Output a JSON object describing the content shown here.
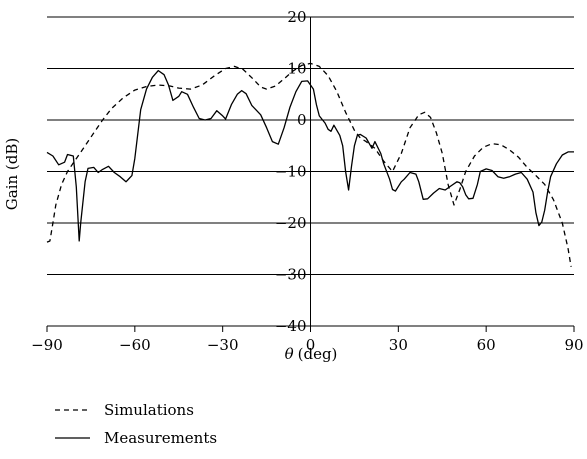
{
  "chart_data": {
    "type": "line",
    "xlabel_symbol": "θ",
    "xlabel_unit": "(deg)",
    "ylabel": "Gain (dB)",
    "xlim": [
      -90,
      90
    ],
    "ylim": [
      -40,
      20
    ],
    "x_ticks": [
      -90,
      -60,
      -30,
      0,
      30,
      60,
      90
    ],
    "x_tick_labels": [
      "−90",
      "−60",
      "−30",
      "0",
      "30",
      "60",
      "90"
    ],
    "y_ticks": [
      20,
      10,
      0,
      -10,
      -20,
      -30,
      -40
    ],
    "y_tick_labels": [
      "20",
      "10",
      "0",
      "−10",
      "−20",
      "−30",
      "−40"
    ],
    "grid": "horizontal",
    "legend_position": "bottom-left",
    "series": [
      {
        "name": "Simulations",
        "style": "dashed",
        "points": [
          [
            -90,
            -23.7
          ],
          [
            -89,
            -23.5
          ],
          [
            -88,
            -20
          ],
          [
            -87,
            -16.5
          ],
          [
            -85,
            -12.5
          ],
          [
            -83,
            -10
          ],
          [
            -80,
            -7.5
          ],
          [
            -77,
            -5
          ],
          [
            -74,
            -2.5
          ],
          [
            -71,
            0
          ],
          [
            -68,
            2.2
          ],
          [
            -64,
            4.3
          ],
          [
            -60,
            5.8
          ],
          [
            -56,
            6.5
          ],
          [
            -52,
            6.8
          ],
          [
            -48,
            6.6
          ],
          [
            -45,
            6.2
          ],
          [
            -41,
            6
          ],
          [
            -37,
            6.8
          ],
          [
            -33,
            8.5
          ],
          [
            -29,
            10
          ],
          [
            -26,
            10.4
          ],
          [
            -23,
            9.8
          ],
          [
            -20,
            8.2
          ],
          [
            -17,
            6.4
          ],
          [
            -15,
            6
          ],
          [
            -12,
            6.6
          ],
          [
            -9,
            8
          ],
          [
            -6,
            9.5
          ],
          [
            -3,
            10.6
          ],
          [
            0,
            11
          ],
          [
            3,
            10.4
          ],
          [
            6,
            8.6
          ],
          [
            9,
            5.5
          ],
          [
            12,
            1.5
          ],
          [
            15,
            -2
          ],
          [
            17,
            -3.5
          ],
          [
            19,
            -4.2
          ],
          [
            22,
            -5.5
          ],
          [
            25,
            -8
          ],
          [
            28,
            -10
          ],
          [
            31,
            -6.5
          ],
          [
            34,
            -1.5
          ],
          [
            37,
            1
          ],
          [
            39,
            1.5
          ],
          [
            41,
            0.5
          ],
          [
            43,
            -2.5
          ],
          [
            45,
            -6.5
          ],
          [
            47,
            -12.5
          ],
          [
            49,
            -16.5
          ],
          [
            51,
            -13.5
          ],
          [
            53,
            -10
          ],
          [
            56,
            -7
          ],
          [
            59,
            -5.3
          ],
          [
            62,
            -4.6
          ],
          [
            65,
            -4.8
          ],
          [
            68,
            -5.8
          ],
          [
            71,
            -7.2
          ],
          [
            74,
            -9.2
          ],
          [
            77,
            -10.8
          ],
          [
            80,
            -12.5
          ],
          [
            83,
            -15.5
          ],
          [
            86,
            -20
          ],
          [
            88,
            -25
          ],
          [
            89,
            -28.5
          ]
        ]
      },
      {
        "name": "Measurements",
        "style": "solid",
        "points": [
          [
            -90,
            -6.3
          ],
          [
            -88,
            -7
          ],
          [
            -86,
            -8.7
          ],
          [
            -84,
            -8.2
          ],
          [
            -83,
            -6.7
          ],
          [
            -81,
            -7
          ],
          [
            -80,
            -13
          ],
          [
            -79,
            -23.5
          ],
          [
            -78.5,
            -20
          ],
          [
            -77,
            -12
          ],
          [
            -76,
            -9.4
          ],
          [
            -74,
            -9.2
          ],
          [
            -72.5,
            -10.2
          ],
          [
            -71,
            -9.6
          ],
          [
            -69,
            -9
          ],
          [
            -67,
            -10.2
          ],
          [
            -65,
            -11
          ],
          [
            -63,
            -12
          ],
          [
            -61,
            -10.8
          ],
          [
            -60,
            -7.5
          ],
          [
            -58,
            2
          ],
          [
            -56,
            6
          ],
          [
            -54,
            8.3
          ],
          [
            -52,
            9.6
          ],
          [
            -50,
            8.8
          ],
          [
            -48.5,
            6.8
          ],
          [
            -47,
            3.8
          ],
          [
            -45,
            4.6
          ],
          [
            -44,
            5.5
          ],
          [
            -42,
            5
          ],
          [
            -40,
            2.5
          ],
          [
            -38,
            0.3
          ],
          [
            -36,
            0
          ],
          [
            -34,
            0.3
          ],
          [
            -32,
            1.8
          ],
          [
            -30,
            0.8
          ],
          [
            -29,
            0.2
          ],
          [
            -27,
            3
          ],
          [
            -25,
            5
          ],
          [
            -23.5,
            5.7
          ],
          [
            -22,
            5.1
          ],
          [
            -20,
            2.8
          ],
          [
            -19,
            2.2
          ],
          [
            -17,
            1
          ],
          [
            -15,
            -1.5
          ],
          [
            -13,
            -4.2
          ],
          [
            -11,
            -4.7
          ],
          [
            -9,
            -1.5
          ],
          [
            -7,
            2.5
          ],
          [
            -5,
            5.5
          ],
          [
            -3,
            7.5
          ],
          [
            -1,
            7.6
          ],
          [
            1,
            6
          ],
          [
            2,
            3
          ],
          [
            3,
            0.8
          ],
          [
            5,
            -0.6
          ],
          [
            6,
            -1.8
          ],
          [
            7,
            -2.2
          ],
          [
            8,
            -1
          ],
          [
            10,
            -3
          ],
          [
            11,
            -5
          ],
          [
            12,
            -10
          ],
          [
            13,
            -13.6
          ],
          [
            14,
            -9
          ],
          [
            15,
            -5
          ],
          [
            16,
            -3
          ],
          [
            17,
            -2.8
          ],
          [
            19,
            -3.5
          ],
          [
            21,
            -5.5
          ],
          [
            22,
            -4.2
          ],
          [
            24,
            -6.5
          ],
          [
            25,
            -8.5
          ],
          [
            27,
            -11.5
          ],
          [
            28,
            -13.5
          ],
          [
            29,
            -13.8
          ],
          [
            31,
            -12
          ],
          [
            32,
            -11.5
          ],
          [
            34,
            -10.2
          ],
          [
            36,
            -10.5
          ],
          [
            37,
            -12
          ],
          [
            38.5,
            -15.4
          ],
          [
            40,
            -15.3
          ],
          [
            42,
            -14.2
          ],
          [
            44,
            -13.3
          ],
          [
            46,
            -13.6
          ],
          [
            48,
            -12.8
          ],
          [
            50,
            -12
          ],
          [
            51,
            -12.2
          ],
          [
            52,
            -13
          ],
          [
            53,
            -14.5
          ],
          [
            54,
            -15.3
          ],
          [
            55.5,
            -15.2
          ],
          [
            57,
            -12.5
          ],
          [
            58,
            -10
          ],
          [
            60,
            -9.5
          ],
          [
            62,
            -9.8
          ],
          [
            64,
            -11
          ],
          [
            66,
            -11.3
          ],
          [
            68,
            -11
          ],
          [
            70,
            -10.5
          ],
          [
            72,
            -10.2
          ],
          [
            74,
            -11.5
          ],
          [
            76,
            -14
          ],
          [
            77,
            -18
          ],
          [
            78,
            -20.5
          ],
          [
            79,
            -19.8
          ],
          [
            80,
            -17.5
          ],
          [
            81,
            -14
          ],
          [
            82,
            -11
          ],
          [
            84,
            -8.5
          ],
          [
            86,
            -6.8
          ],
          [
            88,
            -6.2
          ],
          [
            90,
            -6.2
          ]
        ]
      }
    ]
  }
}
